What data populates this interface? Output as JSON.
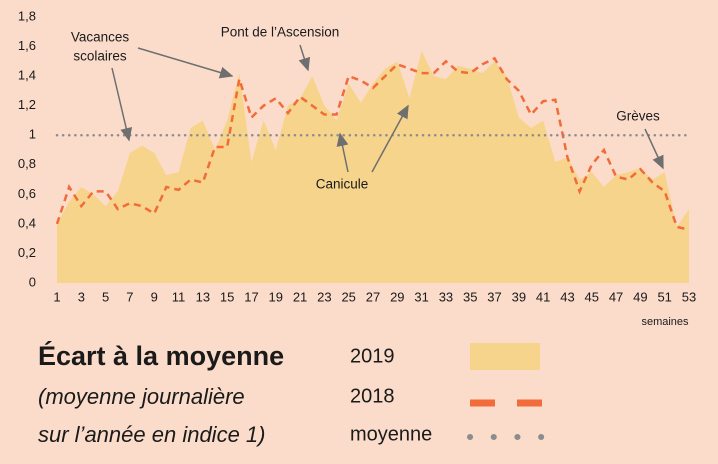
{
  "chart_data": {
    "type": "area-line",
    "x": [
      1,
      2,
      3,
      4,
      5,
      6,
      7,
      8,
      9,
      10,
      11,
      12,
      13,
      14,
      15,
      16,
      17,
      18,
      19,
      20,
      21,
      22,
      23,
      24,
      25,
      26,
      27,
      28,
      29,
      30,
      31,
      32,
      33,
      34,
      35,
      36,
      37,
      38,
      39,
      40,
      41,
      42,
      43,
      44,
      45,
      46,
      47,
      48,
      49,
      50,
      51,
      52,
      53
    ],
    "xlim": [
      1,
      53
    ],
    "xticks": [
      1,
      3,
      5,
      7,
      9,
      11,
      13,
      15,
      17,
      19,
      21,
      23,
      25,
      27,
      29,
      31,
      33,
      35,
      37,
      39,
      41,
      43,
      45,
      47,
      49,
      51,
      53
    ],
    "x_label": "semaines",
    "ylim": [
      0,
      1.8
    ],
    "yticks": [
      0,
      {
        "value": 0.2,
        "label": "0,2"
      },
      {
        "value": 0.4,
        "label": "0,4"
      },
      {
        "value": 0.6,
        "label": "0,6"
      },
      {
        "value": 0.8,
        "label": "0,8"
      },
      1,
      {
        "value": 1.2,
        "label": "1,2"
      },
      {
        "value": 1.4,
        "label": "1,4"
      },
      {
        "value": 1.6,
        "label": "1,6"
      },
      {
        "value": 1.8,
        "label": "1,8"
      }
    ],
    "grid": false,
    "series": [
      {
        "name": "2019",
        "style": "area",
        "color": "#f6d48c",
        "values": [
          0.4,
          0.55,
          0.65,
          0.6,
          0.52,
          0.62,
          0.88,
          0.93,
          0.88,
          0.73,
          0.75,
          1.05,
          1.1,
          0.9,
          1.1,
          1.42,
          0.82,
          1.1,
          0.9,
          1.2,
          1.25,
          1.4,
          1.2,
          1.1,
          1.35,
          1.22,
          1.35,
          1.45,
          1.5,
          1.25,
          1.57,
          1.4,
          1.38,
          1.47,
          1.45,
          1.42,
          1.5,
          1.4,
          1.12,
          1.05,
          1.1,
          0.82,
          0.85,
          0.7,
          0.75,
          0.65,
          0.73,
          0.75,
          0.78,
          0.7,
          0.75,
          0.38,
          0.5
        ]
      },
      {
        "name": "2018",
        "style": "dashed",
        "color": "#f26b3a",
        "values": [
          0.4,
          0.65,
          0.52,
          0.62,
          0.62,
          0.5,
          0.54,
          0.52,
          0.47,
          0.65,
          0.63,
          0.7,
          0.68,
          0.92,
          0.92,
          1.38,
          1.12,
          1.2,
          1.25,
          1.15,
          1.26,
          1.2,
          1.14,
          1.14,
          1.4,
          1.37,
          1.32,
          1.4,
          1.48,
          1.45,
          1.42,
          1.42,
          1.5,
          1.43,
          1.42,
          1.48,
          1.52,
          1.38,
          1.3,
          1.14,
          1.23,
          1.24,
          0.85,
          0.62,
          0.8,
          0.9,
          0.72,
          0.7,
          0.77,
          0.68,
          0.62,
          0.38,
          0.36
        ]
      }
    ],
    "reference": {
      "name": "moyenne",
      "value": 1,
      "color": "#8c8c8c"
    },
    "legend_title": "Écart à la moyenne",
    "legend_subtitle": [
      "(moyenne journalière",
      "sur l’année en indice 1)"
    ],
    "annotations": {
      "vacances": [
        "Vacances",
        "scolaires"
      ],
      "pont": "Pont de l’Ascension",
      "canicule": "Canicule",
      "greves": "Grèves"
    }
  }
}
